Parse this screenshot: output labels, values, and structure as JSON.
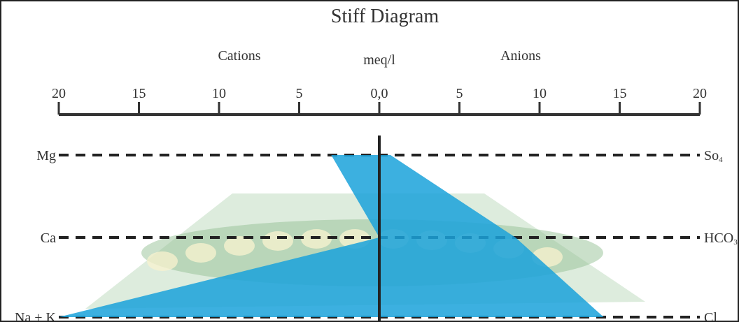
{
  "chart_data": {
    "type": "stiff-diagram",
    "title": "Stiff Diagram",
    "unit_label": "meq/l",
    "left_header": "Cations",
    "right_header": "Anions",
    "axis": {
      "center_label": "0,0",
      "left_ticks": [
        20,
        15,
        10,
        5
      ],
      "right_ticks": [
        5,
        10,
        15,
        20
      ],
      "range": [
        -20,
        20
      ]
    },
    "rows": [
      {
        "cation": "Mg",
        "anion": "So",
        "anion_sub": "4",
        "cation_value": 3,
        "anion_value": 0.7
      },
      {
        "cation": "Ca",
        "anion": "HCO",
        "anion_sub": "3",
        "cation_value": 0,
        "anion_value": 8.5
      },
      {
        "cation": "Na + K",
        "anion": "Cl",
        "anion_sub": "",
        "cation_value": 20,
        "anion_value": 14
      }
    ],
    "fill_color": "#1aa2da",
    "fill_opacity": 0.85
  }
}
